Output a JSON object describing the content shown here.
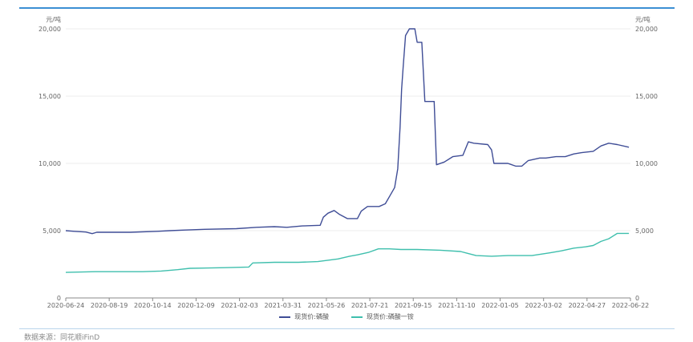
{
  "chart_data": {
    "type": "line",
    "unit_left": "元/吨",
    "unit_right": "元/吨",
    "ylim": [
      0,
      20000
    ],
    "yticks": [
      0,
      5000,
      10000,
      15000,
      20000
    ],
    "ytick_labels": [
      "0",
      "5,000",
      "10,000",
      "15,000",
      "20,000"
    ],
    "xlim": [
      "2020-06-24",
      "2022-06-22"
    ],
    "xticks": [
      "2020-06-24",
      "2020-08-19",
      "2020-10-14",
      "2020-12-09",
      "2021-02-03",
      "2021-03-31",
      "2021-05-26",
      "2021-07-21",
      "2021-09-15",
      "2021-11-10",
      "2022-01-05",
      "2022-03-02",
      "2022-04-27",
      "2022-06-22"
    ],
    "grid": "horizontal",
    "legend": "bottom",
    "series": [
      {
        "name": "现货价:磷酸",
        "color": "#3f4d96",
        "points": [
          [
            "2020-06-24",
            5000
          ],
          [
            "2020-07-05",
            4950
          ],
          [
            "2020-07-20",
            4900
          ],
          [
            "2020-07-28",
            4780
          ],
          [
            "2020-08-03",
            4880
          ],
          [
            "2020-09-15",
            4880
          ],
          [
            "2020-10-20",
            4950
          ],
          [
            "2020-11-05",
            5000
          ],
          [
            "2020-11-25",
            5050
          ],
          [
            "2020-12-20",
            5100
          ],
          [
            "2021-01-30",
            5150
          ],
          [
            "2021-02-25",
            5250
          ],
          [
            "2021-03-20",
            5300
          ],
          [
            "2021-04-05",
            5250
          ],
          [
            "2021-04-25",
            5350
          ],
          [
            "2021-05-18",
            5400
          ],
          [
            "2021-05-22",
            6000
          ],
          [
            "2021-05-28",
            6300
          ],
          [
            "2021-06-05",
            6500
          ],
          [
            "2021-06-12",
            6200
          ],
          [
            "2021-06-22",
            5900
          ],
          [
            "2021-07-05",
            5900
          ],
          [
            "2021-07-10",
            6450
          ],
          [
            "2021-07-18",
            6800
          ],
          [
            "2021-08-02",
            6800
          ],
          [
            "2021-08-10",
            7000
          ],
          [
            "2021-08-16",
            7600
          ],
          [
            "2021-08-22",
            8200
          ],
          [
            "2021-08-26",
            9600
          ],
          [
            "2021-08-29",
            12700
          ],
          [
            "2021-08-31",
            15500
          ],
          [
            "2021-09-02",
            17200
          ],
          [
            "2021-09-05",
            19500
          ],
          [
            "2021-09-10",
            20000
          ],
          [
            "2021-09-17",
            20000
          ],
          [
            "2021-09-20",
            19000
          ],
          [
            "2021-09-26",
            19000
          ],
          [
            "2021-09-30",
            14600
          ],
          [
            "2021-10-12",
            14600
          ],
          [
            "2021-10-15",
            9900
          ],
          [
            "2021-10-25",
            10100
          ],
          [
            "2021-11-05",
            10500
          ],
          [
            "2021-11-18",
            10600
          ],
          [
            "2021-11-25",
            11600
          ],
          [
            "2021-12-02",
            11500
          ],
          [
            "2021-12-20",
            11400
          ],
          [
            "2021-12-25",
            11000
          ],
          [
            "2021-12-28",
            10000
          ],
          [
            "2022-01-15",
            10000
          ],
          [
            "2022-01-25",
            9800
          ],
          [
            "2022-02-02",
            9800
          ],
          [
            "2022-02-10",
            10200
          ],
          [
            "2022-02-25",
            10400
          ],
          [
            "2022-03-05",
            10400
          ],
          [
            "2022-03-18",
            10500
          ],
          [
            "2022-03-30",
            10500
          ],
          [
            "2022-04-10",
            10700
          ],
          [
            "2022-04-20",
            10800
          ],
          [
            "2022-05-05",
            10900
          ],
          [
            "2022-05-15",
            11300
          ],
          [
            "2022-05-25",
            11500
          ],
          [
            "2022-06-05",
            11400
          ],
          [
            "2022-06-20",
            11200
          ]
        ]
      },
      {
        "name": "现货价:磷酸一铵",
        "color": "#3fbfad",
        "points": [
          [
            "2020-06-24",
            1900
          ],
          [
            "2020-08-01",
            1950
          ],
          [
            "2020-10-01",
            1950
          ],
          [
            "2020-10-25",
            2000
          ],
          [
            "2020-11-15",
            2100
          ],
          [
            "2020-12-01",
            2200
          ],
          [
            "2021-01-15",
            2250
          ],
          [
            "2021-02-15",
            2300
          ],
          [
            "2021-02-20",
            2600
          ],
          [
            "2021-03-20",
            2650
          ],
          [
            "2021-04-20",
            2650
          ],
          [
            "2021-05-15",
            2700
          ],
          [
            "2021-06-10",
            2900
          ],
          [
            "2021-06-25",
            3100
          ],
          [
            "2021-07-05",
            3200
          ],
          [
            "2021-07-20",
            3400
          ],
          [
            "2021-08-01",
            3650
          ],
          [
            "2021-08-15",
            3650
          ],
          [
            "2021-08-30",
            3600
          ],
          [
            "2021-09-20",
            3600
          ],
          [
            "2021-10-20",
            3550
          ],
          [
            "2021-11-15",
            3450
          ],
          [
            "2021-11-25",
            3300
          ],
          [
            "2021-12-05",
            3150
          ],
          [
            "2021-12-25",
            3100
          ],
          [
            "2022-01-15",
            3150
          ],
          [
            "2022-02-15",
            3150
          ],
          [
            "2022-03-10",
            3350
          ],
          [
            "2022-03-25",
            3500
          ],
          [
            "2022-04-10",
            3700
          ],
          [
            "2022-04-25",
            3800
          ],
          [
            "2022-05-05",
            3900
          ],
          [
            "2022-05-15",
            4200
          ],
          [
            "2022-05-25",
            4400
          ],
          [
            "2022-06-05",
            4800
          ],
          [
            "2022-06-20",
            4800
          ]
        ]
      }
    ]
  },
  "source": "数据来源：同花顺iFinD"
}
